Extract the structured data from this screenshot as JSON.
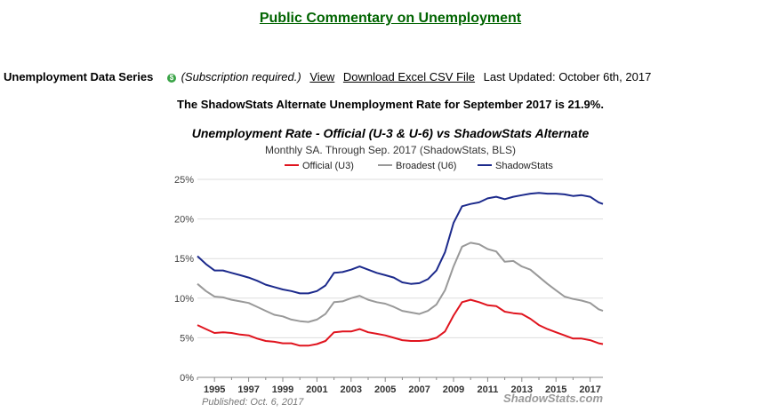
{
  "page": {
    "title": "Public Commentary on Unemployment",
    "series_label": "Unemployment Data Series",
    "subscription_note": "(Subscription required.)",
    "view_link": "View",
    "download_link": "Download Excel CSV File",
    "last_updated": "Last Updated: October 6th, 2017",
    "headline": "The ShadowStats Alternate Unemployment Rate for September 2017 is 21.9%."
  },
  "icons": {
    "subscription": "dollar-icon"
  },
  "chart_data": {
    "type": "line",
    "title": "Unemployment Rate - Official (U-3 & U-6) vs ShadowStats Alternate",
    "subtitle": "Monthly SA. Through Sep. 2017  (ShadowStats, BLS)",
    "xlabel": "",
    "ylabel": "",
    "xlim": [
      1994.0,
      2017.75
    ],
    "ylim": [
      0,
      25
    ],
    "yticks": [
      0,
      5,
      10,
      15,
      20,
      25
    ],
    "ytick_labels": [
      "0%",
      "5%",
      "10%",
      "15%",
      "20%",
      "25%"
    ],
    "xticks": [
      "1995",
      "1997",
      "1999",
      "2001",
      "2003",
      "2005",
      "2007",
      "2009",
      "2011",
      "2013",
      "2015",
      "2017"
    ],
    "grid": true,
    "legend_position": "top",
    "publish_note": "Published: Oct. 6, 2017",
    "watermark": "ShadowStats.com",
    "series": [
      {
        "name": "Official (U3)",
        "color": "#e0141e",
        "x": [
          1994.0,
          1994.5,
          1995.0,
          1995.5,
          1996.0,
          1996.5,
          1997.0,
          1997.5,
          1998.0,
          1998.5,
          1999.0,
          1999.5,
          2000.0,
          2000.5,
          2001.0,
          2001.5,
          2002.0,
          2002.5,
          2003.0,
          2003.5,
          2004.0,
          2004.5,
          2005.0,
          2005.5,
          2006.0,
          2006.5,
          2007.0,
          2007.5,
          2008.0,
          2008.5,
          2009.0,
          2009.5,
          2010.0,
          2010.5,
          2011.0,
          2011.5,
          2012.0,
          2012.5,
          2013.0,
          2013.5,
          2014.0,
          2014.5,
          2015.0,
          2015.5,
          2016.0,
          2016.5,
          2017.0,
          2017.5,
          2017.75
        ],
        "values": [
          6.6,
          6.1,
          5.6,
          5.7,
          5.6,
          5.4,
          5.3,
          4.9,
          4.6,
          4.5,
          4.3,
          4.3,
          4.0,
          4.0,
          4.2,
          4.6,
          5.7,
          5.8,
          5.8,
          6.1,
          5.7,
          5.5,
          5.3,
          5.0,
          4.7,
          4.6,
          4.6,
          4.7,
          5.0,
          5.8,
          7.8,
          9.5,
          9.8,
          9.5,
          9.1,
          9.0,
          8.3,
          8.1,
          8.0,
          7.4,
          6.6,
          6.1,
          5.7,
          5.3,
          4.9,
          4.9,
          4.7,
          4.3,
          4.2
        ]
      },
      {
        "name": "Broadest (U6)",
        "color": "#999999",
        "x": [
          1994.0,
          1994.5,
          1995.0,
          1995.5,
          1996.0,
          1996.5,
          1997.0,
          1997.5,
          1998.0,
          1998.5,
          1999.0,
          1999.5,
          2000.0,
          2000.5,
          2001.0,
          2001.5,
          2002.0,
          2002.5,
          2003.0,
          2003.5,
          2004.0,
          2004.5,
          2005.0,
          2005.5,
          2006.0,
          2006.5,
          2007.0,
          2007.5,
          2008.0,
          2008.5,
          2009.0,
          2009.5,
          2010.0,
          2010.5,
          2011.0,
          2011.5,
          2012.0,
          2012.5,
          2013.0,
          2013.5,
          2014.0,
          2014.5,
          2015.0,
          2015.5,
          2016.0,
          2016.5,
          2017.0,
          2017.5,
          2017.75
        ],
        "values": [
          11.8,
          10.9,
          10.2,
          10.1,
          9.8,
          9.6,
          9.4,
          8.9,
          8.4,
          7.9,
          7.7,
          7.3,
          7.1,
          7.0,
          7.3,
          8.0,
          9.5,
          9.6,
          10.0,
          10.3,
          9.8,
          9.5,
          9.3,
          8.9,
          8.4,
          8.2,
          8.0,
          8.4,
          9.2,
          11.0,
          14.0,
          16.5,
          17.0,
          16.8,
          16.2,
          15.9,
          14.6,
          14.7,
          14.0,
          13.6,
          12.7,
          11.8,
          11.0,
          10.2,
          9.9,
          9.7,
          9.4,
          8.6,
          8.4
        ]
      },
      {
        "name": "ShadowStats",
        "color": "#1c2a8c",
        "x": [
          1994.0,
          1994.5,
          1995.0,
          1995.5,
          1996.0,
          1996.5,
          1997.0,
          1997.5,
          1998.0,
          1998.5,
          1999.0,
          1999.5,
          2000.0,
          2000.5,
          2001.0,
          2001.5,
          2002.0,
          2002.5,
          2003.0,
          2003.5,
          2004.0,
          2004.5,
          2005.0,
          2005.5,
          2006.0,
          2006.5,
          2007.0,
          2007.5,
          2008.0,
          2008.5,
          2009.0,
          2009.5,
          2010.0,
          2010.5,
          2011.0,
          2011.5,
          2012.0,
          2012.5,
          2013.0,
          2013.5,
          2014.0,
          2014.5,
          2015.0,
          2015.5,
          2016.0,
          2016.5,
          2017.0,
          2017.5,
          2017.75
        ],
        "values": [
          15.3,
          14.3,
          13.5,
          13.5,
          13.2,
          12.9,
          12.6,
          12.2,
          11.7,
          11.4,
          11.1,
          10.9,
          10.6,
          10.6,
          10.9,
          11.6,
          13.2,
          13.3,
          13.6,
          14.0,
          13.6,
          13.2,
          12.9,
          12.6,
          12.0,
          11.8,
          11.9,
          12.4,
          13.5,
          15.8,
          19.5,
          21.6,
          21.9,
          22.1,
          22.6,
          22.8,
          22.5,
          22.8,
          23.0,
          23.2,
          23.3,
          23.2,
          23.2,
          23.1,
          22.9,
          23.0,
          22.8,
          22.1,
          21.9
        ]
      }
    ]
  }
}
